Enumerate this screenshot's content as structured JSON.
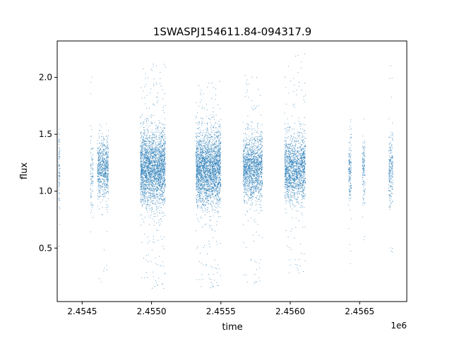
{
  "chart_data": {
    "type": "scatter",
    "title": "1SWASPJ154611.84-094317.9",
    "xlabel": "time",
    "ylabel": "flux",
    "x_offset_label": "1e6",
    "xlim": [
      2454320,
      2456840
    ],
    "ylim": [
      0.03,
      2.32
    ],
    "x_ticks": [
      {
        "value": 2454500,
        "label": "2.4545"
      },
      {
        "value": 2455000,
        "label": "2.4550"
      },
      {
        "value": 2455500,
        "label": "2.4555"
      },
      {
        "value": 2456000,
        "label": "2.4560"
      },
      {
        "value": 2456500,
        "label": "2.4565"
      }
    ],
    "y_ticks": [
      {
        "value": 0.5,
        "label": "0.5"
      },
      {
        "value": 1.0,
        "label": "1.0"
      },
      {
        "value": 1.5,
        "label": "1.5"
      },
      {
        "value": 2.0,
        "label": "2.0"
      }
    ],
    "grid": false,
    "point_color": "#1f77b4",
    "observing_seasons": [
      {
        "x_start": 2454330,
        "x_end": 2454340,
        "center": 1.18,
        "spread": 0.18,
        "y_min": 0.38,
        "y_max": 1.71,
        "points": 80
      },
      {
        "x_start": 2454560,
        "x_end": 2454580,
        "center": 1.15,
        "spread": 0.22,
        "y_min": 0.32,
        "y_max": 2.14,
        "points": 90
      },
      {
        "x_start": 2454610,
        "x_end": 2454690,
        "center": 1.2,
        "spread": 0.12,
        "y_min": 0.18,
        "y_max": 1.63,
        "points": 700
      },
      {
        "x_start": 2454920,
        "x_end": 2455100,
        "center": 1.2,
        "spread": 0.16,
        "y_min": 0.14,
        "y_max": 2.12,
        "points": 2600
      },
      {
        "x_start": 2455320,
        "x_end": 2455500,
        "center": 1.2,
        "spread": 0.16,
        "y_min": 0.13,
        "y_max": 1.97,
        "points": 2600
      },
      {
        "x_start": 2455660,
        "x_end": 2455800,
        "center": 1.2,
        "spread": 0.14,
        "y_min": 0.17,
        "y_max": 2.06,
        "points": 1500
      },
      {
        "x_start": 2455960,
        "x_end": 2456110,
        "center": 1.2,
        "spread": 0.14,
        "y_min": 0.25,
        "y_max": 2.21,
        "points": 1600
      },
      {
        "x_start": 2456420,
        "x_end": 2456440,
        "center": 1.18,
        "spread": 0.16,
        "y_min": 0.33,
        "y_max": 2.05,
        "points": 160
      },
      {
        "x_start": 2456520,
        "x_end": 2456540,
        "center": 1.18,
        "spread": 0.14,
        "y_min": 0.56,
        "y_max": 1.67,
        "points": 130
      },
      {
        "x_start": 2456710,
        "x_end": 2456740,
        "center": 1.18,
        "spread": 0.16,
        "y_min": 0.27,
        "y_max": 2.16,
        "points": 220
      }
    ]
  }
}
